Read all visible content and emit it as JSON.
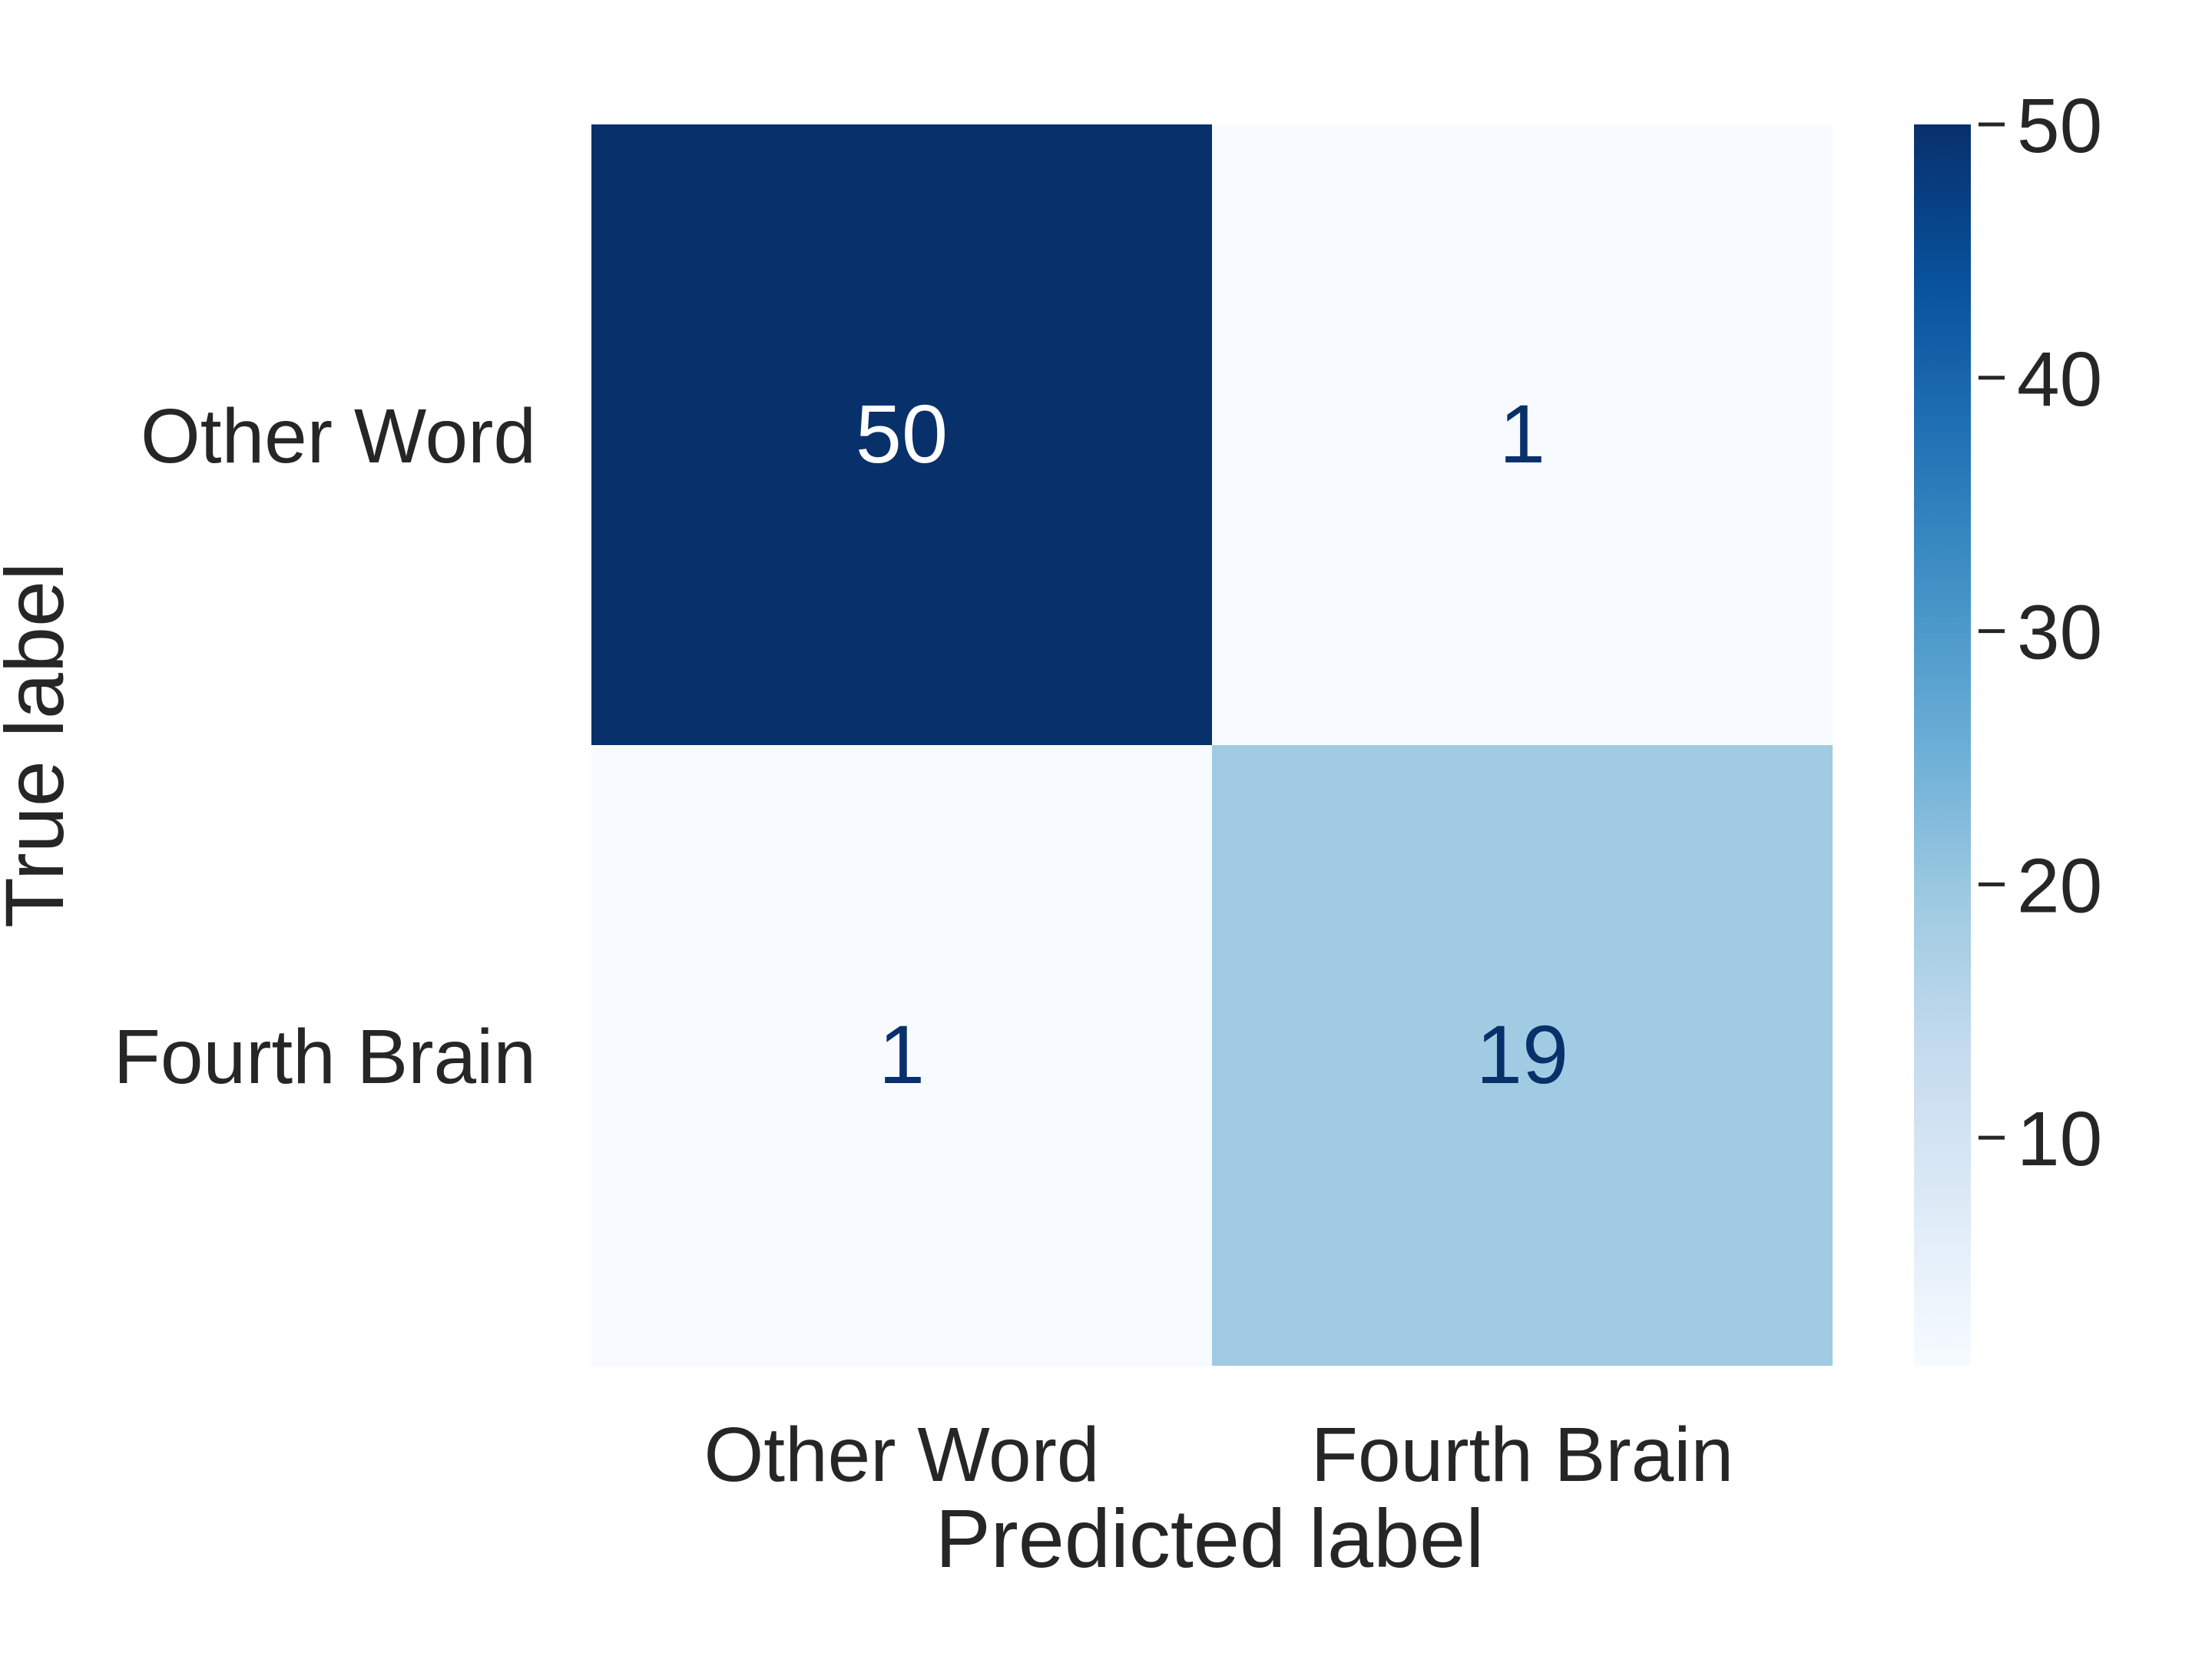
{
  "chart_data": {
    "type": "heatmap",
    "title": "",
    "xlabel": "Predicted label",
    "ylabel": "True label",
    "x_categories": [
      "Other Word",
      "Fourth Brain"
    ],
    "y_categories": [
      "Other Word",
      "Fourth Brain"
    ],
    "values": [
      [
        50,
        1
      ],
      [
        1,
        19
      ]
    ],
    "colormap": "Blues",
    "colorbar": {
      "vmin": 1,
      "vmax": 50,
      "ticks": [
        10,
        20,
        30,
        40,
        50
      ],
      "tick_labels": [
        "10",
        "20",
        "30",
        "40",
        "50"
      ]
    },
    "grid": false,
    "colors": {
      "text_dark": "#262626",
      "annotation_light": "#ffffff",
      "annotation_dark": "#08306b"
    }
  }
}
